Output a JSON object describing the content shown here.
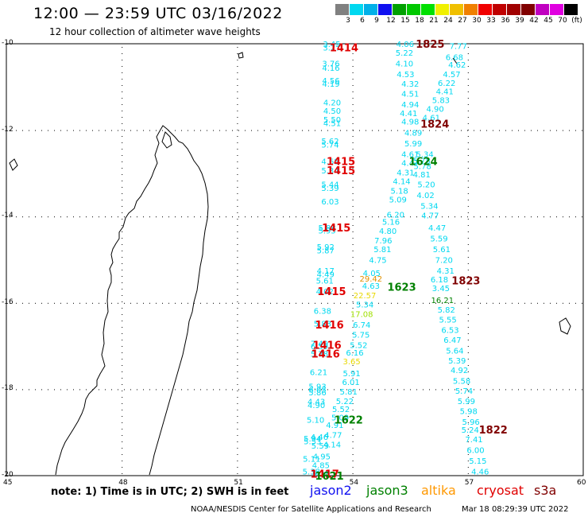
{
  "header": {
    "title": "12:00 — 23:59 UTC 03/16/2022",
    "subtitle": "12 hour collection of altimeter wave heights"
  },
  "colorbar": {
    "colors": [
      "#808080",
      "#00d8f0",
      "#00b0e8",
      "#1010f0",
      "#00a000",
      "#00c800",
      "#00e000",
      "#f0f000",
      "#f0c000",
      "#f08000",
      "#f00000",
      "#c00000",
      "#a00000",
      "#800000",
      "#c000c0",
      "#e000e0",
      "#000000"
    ],
    "labels": [
      "3",
      "6",
      "9",
      "12",
      "15",
      "18",
      "21",
      "24",
      "27",
      "30",
      "33",
      "36",
      "39",
      "42",
      "45",
      "70",
      "(ft)"
    ]
  },
  "axes": {
    "lat_labels": [
      "-10",
      "-12",
      "-14",
      "-16",
      "-18",
      "-20"
    ],
    "lon_labels": [
      "45",
      "48",
      "51",
      "54",
      "57",
      "60"
    ]
  },
  "satellite_colors": {
    "jason2": "#00d8f0",
    "jason3": "#008000",
    "altika": "#ffa000",
    "cryosat": "#e00000",
    "s3a": "#800000",
    "orange": "#e09000",
    "yellow": "#e8d800",
    "lime": "#a0e000"
  },
  "track_values": [
    {
      "v": "3.45",
      "lon": 53.46,
      "lat": -10.0,
      "c": "jason2"
    },
    {
      "v": "3.27",
      "lon": 53.46,
      "lat": -10.08,
      "c": "jason2"
    },
    {
      "v": "3.76",
      "lon": 53.44,
      "lat": -10.45,
      "c": "jason2"
    },
    {
      "v": "4.16",
      "lon": 53.44,
      "lat": -10.55,
      "c": "jason2"
    },
    {
      "v": "4.56",
      "lon": 53.44,
      "lat": -10.85,
      "c": "jason2"
    },
    {
      "v": "4.19",
      "lon": 53.44,
      "lat": -10.92,
      "c": "jason2"
    },
    {
      "v": "4.20",
      "lon": 53.47,
      "lat": -11.35,
      "c": "jason2"
    },
    {
      "v": "4.50",
      "lon": 53.47,
      "lat": -11.55,
      "c": "jason2"
    },
    {
      "v": "5.50",
      "lon": 53.47,
      "lat": -11.75,
      "c": "jason2"
    },
    {
      "v": "4.51",
      "lon": 53.47,
      "lat": -11.83,
      "c": "jason2"
    },
    {
      "v": "5.62",
      "lon": 53.42,
      "lat": -12.25,
      "c": "jason2"
    },
    {
      "v": "5.74",
      "lon": 53.42,
      "lat": -12.33,
      "c": "jason2"
    },
    {
      "v": "4.68",
      "lon": 53.42,
      "lat": -12.72,
      "c": "jason2"
    },
    {
      "v": "5.34",
      "lon": 53.42,
      "lat": -12.93,
      "c": "jason2"
    },
    {
      "v": "5.44",
      "lon": 53.42,
      "lat": -13.25,
      "c": "jason2"
    },
    {
      "v": "5.39",
      "lon": 53.42,
      "lat": -13.33,
      "c": "jason2"
    },
    {
      "v": "6.03",
      "lon": 53.42,
      "lat": -13.65,
      "c": "jason2"
    },
    {
      "v": "5.88",
      "lon": 53.34,
      "lat": -14.25,
      "c": "jason2"
    },
    {
      "v": "5.95",
      "lon": 53.34,
      "lat": -14.32,
      "c": "jason2"
    },
    {
      "v": "5.92",
      "lon": 53.3,
      "lat": -14.7,
      "c": "jason2"
    },
    {
      "v": "5.87",
      "lon": 53.3,
      "lat": -14.78,
      "c": "jason2"
    },
    {
      "v": "4.17",
      "lon": 53.3,
      "lat": -15.25,
      "c": "jason2"
    },
    {
      "v": "4.49",
      "lon": 53.3,
      "lat": -15.33,
      "c": "jason2"
    },
    {
      "v": "5.61",
      "lon": 53.28,
      "lat": -15.48,
      "c": "jason2"
    },
    {
      "v": "4.02",
      "lon": 53.28,
      "lat": -15.73,
      "c": "jason2"
    },
    {
      "v": "6.38",
      "lon": 53.22,
      "lat": -16.18,
      "c": "jason2"
    },
    {
      "v": "5.83",
      "lon": 53.22,
      "lat": -16.47,
      "c": "jason2"
    },
    {
      "v": "7.49",
      "lon": 53.14,
      "lat": -16.93,
      "c": "jason2"
    },
    {
      "v": "6.59",
      "lon": 53.14,
      "lat": -17.0,
      "c": "jason2"
    },
    {
      "v": "5.78",
      "lon": 53.14,
      "lat": -17.17,
      "c": "jason2"
    },
    {
      "v": "6.21",
      "lon": 53.12,
      "lat": -17.6,
      "c": "jason2"
    },
    {
      "v": "5.93",
      "lon": 53.09,
      "lat": -17.93,
      "c": "jason2"
    },
    {
      "v": "6.05",
      "lon": 53.09,
      "lat": -18.0,
      "c": "jason2"
    },
    {
      "v": "5.86",
      "lon": 53.09,
      "lat": -18.07,
      "c": "jason2"
    },
    {
      "v": "4.43",
      "lon": 53.06,
      "lat": -18.28,
      "c": "jason2"
    },
    {
      "v": "4.90",
      "lon": 53.06,
      "lat": -18.36,
      "c": "jason2"
    },
    {
      "v": "5.10",
      "lon": 53.04,
      "lat": -18.7,
      "c": "jason2"
    },
    {
      "v": "5.94",
      "lon": 52.96,
      "lat": -19.13,
      "c": "jason2"
    },
    {
      "v": "5.53",
      "lon": 52.96,
      "lat": -19.2,
      "c": "jason2"
    },
    {
      "v": "5.11",
      "lon": 52.94,
      "lat": -19.6,
      "c": "jason2"
    },
    {
      "v": "5.38",
      "lon": 52.93,
      "lat": -19.9,
      "c": "jason2"
    },
    {
      "v": "4.46",
      "lon": 53.14,
      "lat": -19.1,
      "c": "jason2"
    },
    {
      "v": "5.59",
      "lon": 53.16,
      "lat": -19.3,
      "c": "jason2"
    },
    {
      "v": "4.95",
      "lon": 53.2,
      "lat": -19.55,
      "c": "jason2"
    },
    {
      "v": "4.85",
      "lon": 53.18,
      "lat": -19.75,
      "c": "jason2"
    },
    {
      "v": "5.25",
      "lon": 53.18,
      "lat": -19.95,
      "c": "jason2"
    },
    {
      "v": "4.06",
      "lon": 55.37,
      "lat": -10.0,
      "c": "jason2"
    },
    {
      "v": "5.22",
      "lon": 55.35,
      "lat": -10.2,
      "c": "jason2"
    },
    {
      "v": "4.10",
      "lon": 55.35,
      "lat": -10.45,
      "c": "jason2"
    },
    {
      "v": "4.53",
      "lon": 55.38,
      "lat": -10.7,
      "c": "jason2"
    },
    {
      "v": "4.32",
      "lon": 55.5,
      "lat": -10.92,
      "c": "jason2"
    },
    {
      "v": "4.51",
      "lon": 55.5,
      "lat": -11.15,
      "c": "jason2"
    },
    {
      "v": "4.94",
      "lon": 55.5,
      "lat": -11.4,
      "c": "jason2"
    },
    {
      "v": "4.41",
      "lon": 55.46,
      "lat": -11.6,
      "c": "jason2"
    },
    {
      "v": "4.98",
      "lon": 55.5,
      "lat": -11.8,
      "c": "jason2"
    },
    {
      "v": "4.89",
      "lon": 55.58,
      "lat": -12.05,
      "c": "jason2"
    },
    {
      "v": "5.99",
      "lon": 55.58,
      "lat": -12.3,
      "c": "jason2"
    },
    {
      "v": "4.61",
      "lon": 55.5,
      "lat": -12.55,
      "c": "jason2"
    },
    {
      "v": "4.47",
      "lon": 55.5,
      "lat": -12.75,
      "c": "jason2"
    },
    {
      "v": "4.31",
      "lon": 55.38,
      "lat": -12.97,
      "c": "jason2"
    },
    {
      "v": "4.14",
      "lon": 55.28,
      "lat": -13.18,
      "c": "jason2"
    },
    {
      "v": "5.18",
      "lon": 55.22,
      "lat": -13.4,
      "c": "jason2"
    },
    {
      "v": "5.09",
      "lon": 55.18,
      "lat": -13.6,
      "c": "jason2"
    },
    {
      "v": "6.20",
      "lon": 55.12,
      "lat": -13.95,
      "c": "jason2"
    },
    {
      "v": "5.16",
      "lon": 55.0,
      "lat": -14.12,
      "c": "jason2"
    },
    {
      "v": "4.80",
      "lon": 54.92,
      "lat": -14.33,
      "c": "jason2"
    },
    {
      "v": "7.96",
      "lon": 54.8,
      "lat": -14.55,
      "c": "jason2"
    },
    {
      "v": "5.81",
      "lon": 54.78,
      "lat": -14.75,
      "c": "jason2"
    },
    {
      "v": "4.75",
      "lon": 54.66,
      "lat": -15.0,
      "c": "jason2"
    },
    {
      "v": "4.05",
      "lon": 54.5,
      "lat": -15.3,
      "c": "jason2"
    },
    {
      "v": "4.63",
      "lon": 54.48,
      "lat": -15.6,
      "c": "jason2"
    },
    {
      "v": "5.34",
      "lon": 54.32,
      "lat": -16.03,
      "c": "jason2"
    },
    {
      "v": "6.74",
      "lon": 54.24,
      "lat": -16.5,
      "c": "jason2"
    },
    {
      "v": "5.75",
      "lon": 54.22,
      "lat": -16.73,
      "c": "jason2"
    },
    {
      "v": "5.52",
      "lon": 54.16,
      "lat": -16.97,
      "c": "jason2"
    },
    {
      "v": "6.16",
      "lon": 54.06,
      "lat": -17.15,
      "c": "jason2"
    },
    {
      "v": "5.91",
      "lon": 53.98,
      "lat": -17.62,
      "c": "jason2"
    },
    {
      "v": "6.01",
      "lon": 53.96,
      "lat": -17.83,
      "c": "jason2"
    },
    {
      "v": "5.81",
      "lon": 53.9,
      "lat": -18.05,
      "c": "jason2"
    },
    {
      "v": "5.22",
      "lon": 53.8,
      "lat": -18.27,
      "c": "jason2"
    },
    {
      "v": "5.52",
      "lon": 53.7,
      "lat": -18.45,
      "c": "jason2"
    },
    {
      "v": "5.09",
      "lon": 53.68,
      "lat": -18.65,
      "c": "jason2"
    },
    {
      "v": "4.91",
      "lon": 53.54,
      "lat": -18.82,
      "c": "jason2"
    },
    {
      "v": "4.77",
      "lon": 53.5,
      "lat": -19.05,
      "c": "jason2"
    },
    {
      "v": "4.14",
      "lon": 53.47,
      "lat": -19.27,
      "c": "jason2"
    },
    {
      "v": "7.77",
      "lon": 56.75,
      "lat": -10.05,
      "c": "jason2"
    },
    {
      "v": "6.68",
      "lon": 56.65,
      "lat": -10.3,
      "c": "jason2"
    },
    {
      "v": "4.62",
      "lon": 56.72,
      "lat": -10.48,
      "c": "jason2"
    },
    {
      "v": "4.57",
      "lon": 56.58,
      "lat": -10.7,
      "c": "jason2"
    },
    {
      "v": "6.22",
      "lon": 56.45,
      "lat": -10.9,
      "c": "jason2"
    },
    {
      "v": "4.41",
      "lon": 56.4,
      "lat": -11.1,
      "c": "jason2"
    },
    {
      "v": "5.83",
      "lon": 56.3,
      "lat": -11.3,
      "c": "jason2"
    },
    {
      "v": "4.90",
      "lon": 56.15,
      "lat": -11.5,
      "c": "jason2"
    },
    {
      "v": "4.61",
      "lon": 56.05,
      "lat": -11.7,
      "c": "jason2"
    },
    {
      "v": "5.34",
      "lon": 55.88,
      "lat": -12.55,
      "c": "jason2"
    },
    {
      "v": "5.78",
      "lon": 55.82,
      "lat": -12.83,
      "c": "jason2"
    },
    {
      "v": "4.81",
      "lon": 55.8,
      "lat": -13.02,
      "c": "jason2"
    },
    {
      "v": "5.20",
      "lon": 55.92,
      "lat": -13.25,
      "c": "jason2"
    },
    {
      "v": "4.02",
      "lon": 55.9,
      "lat": -13.5,
      "c": "jason2"
    },
    {
      "v": "5.34",
      "lon": 56.0,
      "lat": -13.75,
      "c": "jason2"
    },
    {
      "v": "4.77",
      "lon": 56.02,
      "lat": -13.97,
      "c": "jason2"
    },
    {
      "v": "4.47",
      "lon": 56.2,
      "lat": -14.25,
      "c": "jason2"
    },
    {
      "v": "5.59",
      "lon": 56.25,
      "lat": -14.5,
      "c": "jason2"
    },
    {
      "v": "5.61",
      "lon": 56.32,
      "lat": -14.75,
      "c": "jason2"
    },
    {
      "v": "7.20",
      "lon": 56.38,
      "lat": -15.0,
      "c": "jason2"
    },
    {
      "v": "4.31",
      "lon": 56.42,
      "lat": -15.25,
      "c": "jason2"
    },
    {
      "v": "6.18",
      "lon": 56.26,
      "lat": -15.45,
      "c": "jason2"
    },
    {
      "v": "3.45",
      "lon": 56.3,
      "lat": -15.65,
      "c": "jason2"
    },
    {
      "v": "5.82",
      "lon": 56.44,
      "lat": -16.15,
      "c": "jason2"
    },
    {
      "v": "5.55",
      "lon": 56.48,
      "lat": -16.38,
      "c": "jason2"
    },
    {
      "v": "6.53",
      "lon": 56.54,
      "lat": -16.62,
      "c": "jason2"
    },
    {
      "v": "6.47",
      "lon": 56.6,
      "lat": -16.85,
      "c": "jason2"
    },
    {
      "v": "5.64",
      "lon": 56.66,
      "lat": -17.1,
      "c": "jason2"
    },
    {
      "v": "5.39",
      "lon": 56.72,
      "lat": -17.33,
      "c": "jason2"
    },
    {
      "v": "4.92",
      "lon": 56.78,
      "lat": -17.55,
      "c": "jason2"
    },
    {
      "v": "5.58",
      "lon": 56.84,
      "lat": -17.8,
      "c": "jason2"
    },
    {
      "v": "5.74",
      "lon": 56.9,
      "lat": -18.03,
      "c": "jason2"
    },
    {
      "v": "5.99",
      "lon": 56.96,
      "lat": -18.27,
      "c": "jason2"
    },
    {
      "v": "5.98",
      "lon": 57.02,
      "lat": -18.5,
      "c": "jason2"
    },
    {
      "v": "5.96",
      "lon": 57.08,
      "lat": -18.75,
      "c": "jason2"
    },
    {
      "v": "5.24",
      "lon": 57.06,
      "lat": -18.93,
      "c": "jason2"
    },
    {
      "v": "7.41",
      "lon": 57.16,
      "lat": -19.15,
      "c": "jason2"
    },
    {
      "v": "6.00",
      "lon": 57.2,
      "lat": -19.4,
      "c": "jason2"
    },
    {
      "v": "5.15",
      "lon": 57.26,
      "lat": -19.65,
      "c": "jason2"
    },
    {
      "v": "4.46",
      "lon": 57.32,
      "lat": -19.9,
      "c": "jason2"
    },
    {
      "v": "29.42",
      "lon": 54.48,
      "lat": -15.43,
      "c": "orange"
    },
    {
      "v": "22.57",
      "lon": 54.32,
      "lat": -15.82,
      "c": "yellow"
    },
    {
      "v": "17.08",
      "lon": 54.24,
      "lat": -16.25,
      "c": "lime"
    },
    {
      "v": "3.65",
      "lon": 53.98,
      "lat": -17.35,
      "c": "yellow"
    },
    {
      "v": "16.21",
      "lon": 56.34,
      "lat": -15.93,
      "c": "jason3"
    },
    {
      "v": "5.78",
      "lon": 55.8,
      "lat": -12.7,
      "c": "jason2"
    }
  ],
  "time_labels": [
    {
      "v": "1414",
      "lon": 53.78,
      "lat": -10.08,
      "c": "cryosat"
    },
    {
      "v": "1825",
      "lon": 56.02,
      "lat": -10.0,
      "c": "s3a"
    },
    {
      "v": "1824",
      "lon": 56.14,
      "lat": -11.85,
      "c": "s3a"
    },
    {
      "v": "1415",
      "lon": 53.7,
      "lat": -12.72,
      "c": "cryosat"
    },
    {
      "v": "1415",
      "lon": 53.7,
      "lat": -12.93,
      "c": "cryosat"
    },
    {
      "v": "1624",
      "lon": 55.84,
      "lat": -12.72,
      "c": "jason3"
    },
    {
      "v": "1415",
      "lon": 53.58,
      "lat": -14.25,
      "c": "cryosat"
    },
    {
      "v": "1823",
      "lon": 56.95,
      "lat": -15.48,
      "c": "s3a"
    },
    {
      "v": "1623",
      "lon": 55.28,
      "lat": -15.63,
      "c": "jason3"
    },
    {
      "v": "1415",
      "lon": 53.46,
      "lat": -15.73,
      "c": "cryosat"
    },
    {
      "v": "1416",
      "lon": 53.4,
      "lat": -16.5,
      "c": "cryosat"
    },
    {
      "v": "1416",
      "lon": 53.34,
      "lat": -16.97,
      "c": "cryosat"
    },
    {
      "v": "1416",
      "lon": 53.3,
      "lat": -17.17,
      "c": "cryosat"
    },
    {
      "v": "1622",
      "lon": 53.9,
      "lat": -18.7,
      "c": "jason3"
    },
    {
      "v": "1822",
      "lon": 57.66,
      "lat": -18.93,
      "c": "s3a"
    },
    {
      "v": "1417",
      "lon": 53.28,
      "lat": -19.95,
      "c": "cryosat"
    },
    {
      "v": "1621",
      "lon": 53.4,
      "lat": -20.0,
      "c": "jason3"
    }
  ],
  "footer": {
    "note": "note: 1) Time is in UTC; 2) SWH is in feet",
    "legend": [
      {
        "name": "jason2",
        "color": "#1010f0"
      },
      {
        "name": "jason3",
        "color": "#008000"
      },
      {
        "name": "altika",
        "color": "#ff9800"
      },
      {
        "name": "cryosat",
        "color": "#e00000"
      },
      {
        "name": "s3a",
        "color": "#800000"
      }
    ],
    "credit_left": "NOAA/NESDIS Center for Satellite Applications and Research",
    "credit_right": "Mar 18 08:29:39 UTC 2022"
  }
}
